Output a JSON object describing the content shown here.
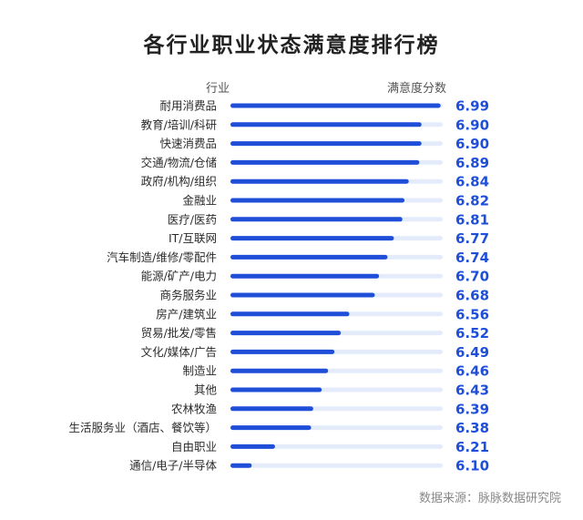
{
  "title": "各行业职业状态满意度排行榜",
  "header": {
    "industry_label": "行业",
    "score_label": "满意度分数"
  },
  "source": "数据来源：脉脉数据研究院",
  "colors": {
    "bar": "#1f4fd8",
    "track": "#e4ebfb",
    "value_text": "#1f4fd8",
    "label_text": "#2b2b2b"
  },
  "chart_data": {
    "type": "bar",
    "orientation": "horizontal",
    "title": "各行业职业状态满意度排行榜",
    "xlabel": "满意度分数",
    "ylabel": "行业",
    "xlim": [
      6.0,
      7.0
    ],
    "grid": false,
    "categories": [
      "耐用消费品",
      "教育/培训/科研",
      "快速消费品",
      "交通/物流/仓储",
      "政府/机构/组织",
      "金融业",
      "医疗/医药",
      "IT/互联网",
      "汽车制造/维修/零配件",
      "能源/矿产/电力",
      "商务服务业",
      "房产/建筑业",
      "贸易/批发/零售",
      "文化/媒体/广告",
      "制造业",
      "其他",
      "农林牧渔",
      "生活服务业（酒店、餐饮等）",
      "自由职业",
      "通信/电子/半导体"
    ],
    "values": [
      6.99,
      6.9,
      6.9,
      6.89,
      6.84,
      6.82,
      6.81,
      6.77,
      6.74,
      6.7,
      6.68,
      6.56,
      6.52,
      6.49,
      6.46,
      6.43,
      6.39,
      6.38,
      6.21,
      6.1
    ],
    "value_labels": [
      "6.99",
      "6.90",
      "6.90",
      "6.89",
      "6.84",
      "6.82",
      "6.81",
      "6.77",
      "6.74",
      "6.70",
      "6.68",
      "6.56",
      "6.52",
      "6.49",
      "6.46",
      "6.43",
      "6.39",
      "6.38",
      "6.21",
      "6.10"
    ]
  }
}
